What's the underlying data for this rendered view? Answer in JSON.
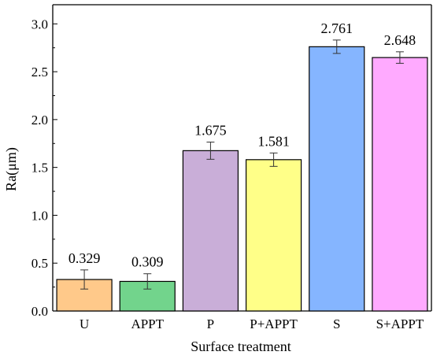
{
  "chart_data": {
    "type": "bar",
    "xlabel": "Surface treatment",
    "ylabel": "Ra(μm)",
    "ylim": [
      0,
      3.2
    ],
    "yticks": [
      "0.0",
      "0.5",
      "1.0",
      "1.5",
      "2.0",
      "2.5",
      "3.0"
    ],
    "categories": [
      "U",
      "APPT",
      "P",
      "P+APPT",
      "S",
      "S+APPT"
    ],
    "values": [
      0.329,
      0.309,
      1.675,
      1.581,
      2.761,
      2.648
    ],
    "value_labels": [
      "0.329",
      "0.309",
      "1.675",
      "1.581",
      "2.761",
      "2.648"
    ],
    "errors": [
      0.1,
      0.08,
      0.09,
      0.07,
      0.07,
      0.06
    ],
    "colors": [
      "#ffc98a",
      "#72d48c",
      "#c9aed8",
      "#ffff88",
      "#85b5ff",
      "#ffaaff"
    ],
    "grid": false
  }
}
